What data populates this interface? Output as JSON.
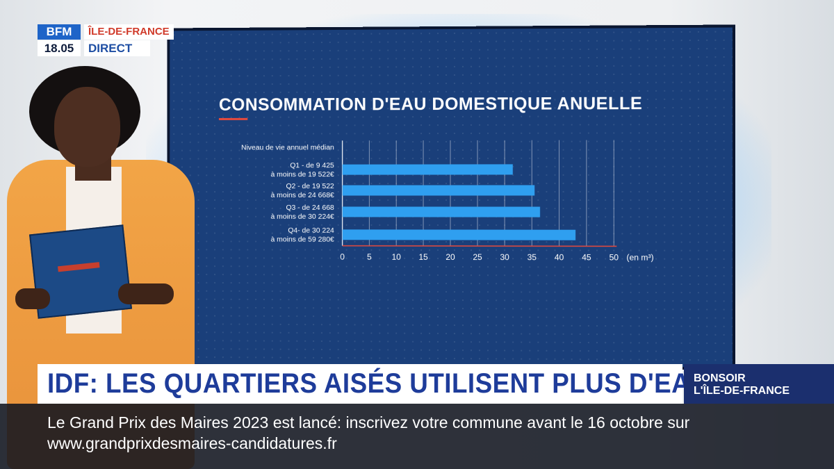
{
  "broadcast": {
    "channel_logo": "BFM",
    "clock": "18.05",
    "region": "ÎLE-DE-FRANCE",
    "live_label": "DIRECT"
  },
  "headline": "IDF:  LES QUARTIERS AISÉS UTILISENT PLUS D'EAU",
  "show": {
    "line1": "BONSOIR",
    "line2": "L'ÎLE-DE-FRANCE"
  },
  "ticker": "Le Grand Prix des Maires 2023 est lancé: inscrivez votre commune avant le 16 octobre sur www.grandprixdesmaires-candidatures.fr",
  "colors": {
    "screen_bg": "#1a3f7a",
    "bar": "#2f9ff0",
    "headline_text": "#1e3c9a",
    "accent_red": "#e84a3c"
  },
  "chart_data": {
    "type": "bar",
    "orientation": "horizontal",
    "title": "CONSOMMATION D'EAU DOMESTIQUE ANUELLE",
    "category_header": "Niveau de vie annuel médian",
    "categories": [
      [
        "Q1 - de 9 425",
        "à moins de 19 522€"
      ],
      [
        "Q2 - de 19 522",
        "à moins de 24 668€"
      ],
      [
        "Q3 - de 24 668",
        "à moins de 30 224€"
      ],
      [
        "Q4- de 30 224",
        "à moins de 59 280€"
      ]
    ],
    "values": [
      31.5,
      35.5,
      36.5,
      43
    ],
    "xlim": [
      0,
      50
    ],
    "xticks": [
      "0",
      "5",
      "10",
      "15",
      "20",
      "25",
      "30",
      "35",
      "40",
      "45",
      "50"
    ],
    "unit_label": "(en m³)",
    "grid": "vertical"
  }
}
